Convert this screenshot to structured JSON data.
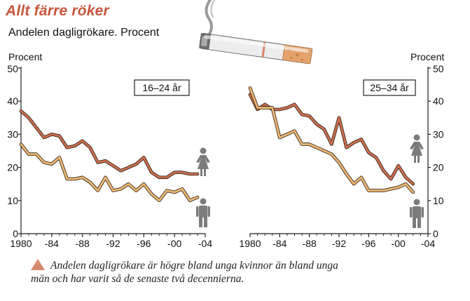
{
  "header": {
    "title": "Allt färre röker",
    "subtitle": "Andelen dagligrökare. Procent"
  },
  "caption": "Andelen dagligrökare är högre bland unga kvinnor än bland unga män och har varit så de senaste två decennierna.",
  "colors": {
    "women": "#c96f4f",
    "men": "#eab874",
    "outline": "#2a1a10",
    "icon": "#7c7c7c",
    "title": "#c8563c"
  },
  "chart_data": [
    {
      "type": "line",
      "label": "16–24 år",
      "ylabel": "Procent",
      "ylim": [
        0,
        50
      ],
      "yticks": [
        0,
        10,
        20,
        30,
        40,
        50
      ],
      "xlim": [
        1980,
        2004
      ],
      "xticks": [
        1980,
        1984,
        1988,
        1992,
        1996,
        2000,
        2004
      ],
      "xtick_labels": [
        "1980",
        "-84",
        "-88",
        "-92",
        "-96",
        "-00",
        "-04"
      ],
      "yaxis_side": "left",
      "series": [
        {
          "key": "women",
          "icon": "female-icon",
          "x": [
            1980,
            1981,
            1982,
            1983,
            1984,
            1985,
            1986,
            1987,
            1988,
            1989,
            1990,
            1991,
            1992,
            1993,
            1994,
            1995,
            1996,
            1997,
            1998,
            1999,
            2000,
            2001,
            2002,
            2003
          ],
          "values": [
            37,
            35,
            32,
            29,
            30,
            29.5,
            26,
            26.5,
            28,
            26,
            21.5,
            22,
            20.5,
            19,
            20,
            21,
            23,
            18.5,
            17,
            17,
            18.5,
            18.5,
            18,
            18
          ]
        },
        {
          "key": "men",
          "icon": "male-icon",
          "x": [
            1980,
            1981,
            1982,
            1983,
            1984,
            1985,
            1986,
            1987,
            1988,
            1989,
            1990,
            1991,
            1992,
            1993,
            1994,
            1995,
            1996,
            1997,
            1998,
            1999,
            2000,
            2001,
            2002,
            2003
          ],
          "values": [
            27,
            24,
            24,
            21.5,
            21,
            23,
            16.5,
            16.5,
            17,
            15.5,
            13,
            17,
            13,
            13.5,
            15,
            13,
            15,
            12,
            10,
            13,
            12.5,
            13.5,
            10,
            11
          ]
        }
      ]
    },
    {
      "type": "line",
      "label": "25–34 år",
      "ylabel": "Procent",
      "ylim": [
        0,
        50
      ],
      "yticks": [
        0,
        10,
        20,
        30,
        40,
        50
      ],
      "xlim": [
        1980,
        2004
      ],
      "xticks": [
        1980,
        1984,
        1988,
        1992,
        1996,
        2000,
        2004
      ],
      "xtick_labels": [
        "1980",
        "-84",
        "-88",
        "-92",
        "-96",
        "-00",
        "-04"
      ],
      "yaxis_side": "right",
      "series": [
        {
          "key": "women",
          "icon": "female-icon",
          "x": [
            1980,
            1981,
            1982,
            1983,
            1984,
            1985,
            1986,
            1987,
            1988,
            1989,
            1990,
            1991,
            1992,
            1993,
            1994,
            1995,
            1996,
            1997,
            1998,
            1999,
            2000,
            2001,
            2002
          ],
          "values": [
            42,
            37.5,
            39,
            37.5,
            37.5,
            38,
            39,
            36,
            35.5,
            33,
            31.5,
            27,
            35,
            26,
            27.5,
            28.5,
            24.5,
            23,
            19,
            16.5,
            20.5,
            17,
            15
          ]
        },
        {
          "key": "men",
          "icon": "male-icon",
          "x": [
            1980,
            1981,
            1982,
            1983,
            1984,
            1985,
            1986,
            1987,
            1988,
            1989,
            1990,
            1991,
            1992,
            1993,
            1994,
            1995,
            1996,
            1997,
            1998,
            1999,
            2000,
            2001,
            2002
          ],
          "values": [
            44,
            38,
            38,
            38,
            29,
            30,
            31,
            27,
            27,
            26,
            25,
            24,
            21.5,
            18,
            15,
            17,
            13,
            13,
            13,
            13.5,
            14,
            15,
            12.5
          ]
        }
      ]
    }
  ]
}
